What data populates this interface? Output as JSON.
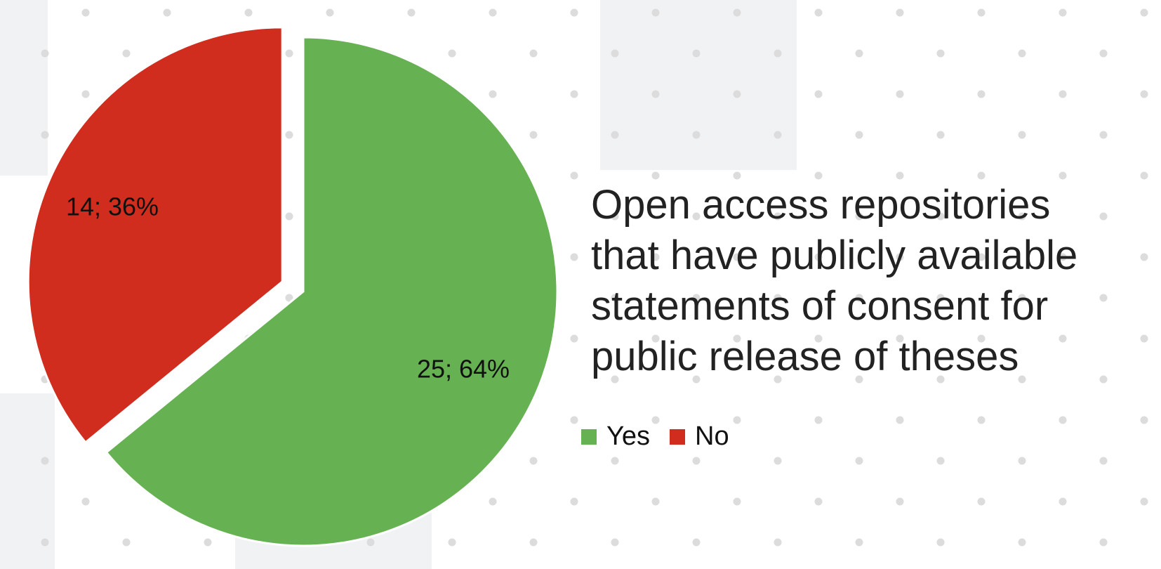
{
  "chart_data": {
    "type": "pie",
    "title": [
      "Open access repositories",
      "that have publicly available",
      "statements of consent for",
      "public release of theses"
    ],
    "slices": [
      {
        "name": "Yes",
        "value": 25,
        "percent": 64,
        "label": "25; 64%",
        "color": "#66b152",
        "exploded": false
      },
      {
        "name": "No",
        "value": 14,
        "percent": 36,
        "label": "14; 36%",
        "color": "#d02d1f",
        "exploded": true
      }
    ],
    "legend": [
      "Yes",
      "No"
    ],
    "legend_position": "bottom-right"
  }
}
